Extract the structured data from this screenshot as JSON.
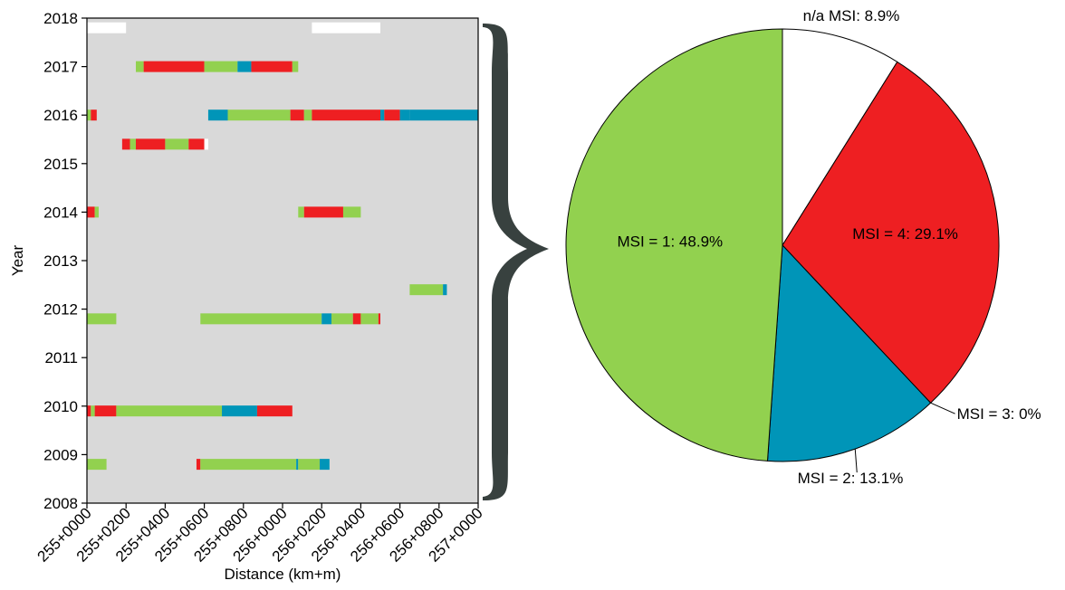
{
  "chart_data": [
    {
      "type": "heatmap",
      "title": "",
      "xlabel": "Distance (km+m)",
      "ylabel": "Year",
      "xlim": [
        "255+0000",
        "257+0000"
      ],
      "ylim": [
        2008,
        2018
      ],
      "x_tick_labels": [
        "255+0000",
        "255+0200",
        "255+0400",
        "255+0600",
        "255+0800",
        "256+0000",
        "256+0200",
        "256+0400",
        "256+0600",
        "256+0800",
        "257+0000"
      ],
      "y_tick_labels": [
        "2008",
        "2009",
        "2010",
        "2011",
        "2012",
        "2013",
        "2014",
        "2015",
        "2016",
        "2017",
        "2018"
      ],
      "background_color": "#d9d9d9",
      "category_colors": {
        "1": "#92d14f",
        "2": "#0095b8",
        "4": "#ee1f22",
        "n/a": "#ffffff"
      },
      "rows": [
        {
          "y": 2017.8,
          "segments": [
            {
              "from": "255+0000",
              "to": "255+0200",
              "msi": "n/a"
            },
            {
              "from": "256+0150",
              "to": "256+0500",
              "msi": "n/a"
            }
          ]
        },
        {
          "y": 2017.0,
          "segments": [
            {
              "from": "255+0250",
              "to": "255+0290",
              "msi": "1"
            },
            {
              "from": "255+0290",
              "to": "255+0600",
              "msi": "4"
            },
            {
              "from": "255+0600",
              "to": "255+0770",
              "msi": "1"
            },
            {
              "from": "255+0770",
              "to": "255+0840",
              "msi": "2"
            },
            {
              "from": "255+0840",
              "to": "256+0050",
              "msi": "4"
            },
            {
              "from": "256+0050",
              "to": "256+0080",
              "msi": "1"
            }
          ]
        },
        {
          "y": 2016.0,
          "segments": [
            {
              "from": "255+0000",
              "to": "255+0020",
              "msi": "1"
            },
            {
              "from": "255+0020",
              "to": "255+0050",
              "msi": "4"
            },
            {
              "from": "255+0620",
              "to": "255+0720",
              "msi": "2"
            },
            {
              "from": "255+0720",
              "to": "256+0040",
              "msi": "1"
            },
            {
              "from": "256+0040",
              "to": "256+0110",
              "msi": "4"
            },
            {
              "from": "256+0110",
              "to": "256+0150",
              "msi": "1"
            },
            {
              "from": "256+0150",
              "to": "256+0500",
              "msi": "4"
            },
            {
              "from": "256+0500",
              "to": "256+0520",
              "msi": "2"
            },
            {
              "from": "256+0520",
              "to": "256+0600",
              "msi": "4"
            },
            {
              "from": "256+0600",
              "to": "256+0650",
              "msi": "2"
            },
            {
              "from": "256+0650",
              "to": "257+0000",
              "msi": "2"
            }
          ]
        },
        {
          "y": 2015.4,
          "segments": [
            {
              "from": "255+0180",
              "to": "255+0220",
              "msi": "4"
            },
            {
              "from": "255+0220",
              "to": "255+0250",
              "msi": "1"
            },
            {
              "from": "255+0250",
              "to": "255+0400",
              "msi": "4"
            },
            {
              "from": "255+0400",
              "to": "255+0520",
              "msi": "1"
            },
            {
              "from": "255+0520",
              "to": "255+0600",
              "msi": "4"
            },
            {
              "from": "255+0600",
              "to": "255+0620",
              "msi": "n/a"
            }
          ]
        },
        {
          "y": 2014.0,
          "segments": [
            {
              "from": "255+0000",
              "to": "255+0040",
              "msi": "4"
            },
            {
              "from": "255+0040",
              "to": "255+0060",
              "msi": "1"
            },
            {
              "from": "256+0080",
              "to": "256+0110",
              "msi": "1"
            },
            {
              "from": "256+0110",
              "to": "256+0310",
              "msi": "4"
            },
            {
              "from": "256+0310",
              "to": "256+0400",
              "msi": "1"
            }
          ]
        },
        {
          "y": 2012.4,
          "segments": [
            {
              "from": "256+0650",
              "to": "256+0820",
              "msi": "1"
            },
            {
              "from": "256+0820",
              "to": "256+0840",
              "msi": "2"
            }
          ]
        },
        {
          "y": 2011.8,
          "segments": [
            {
              "from": "255+0000",
              "to": "255+0150",
              "msi": "1"
            },
            {
              "from": "255+0580",
              "to": "256+0200",
              "msi": "1"
            },
            {
              "from": "256+0200",
              "to": "256+0250",
              "msi": "2"
            },
            {
              "from": "256+0250",
              "to": "256+0360",
              "msi": "1"
            },
            {
              "from": "256+0360",
              "to": "256+0400",
              "msi": "4"
            },
            {
              "from": "256+0400",
              "to": "256+0490",
              "msi": "1"
            },
            {
              "from": "256+0490",
              "to": "256+0500",
              "msi": "4"
            }
          ]
        },
        {
          "y": 2009.9,
          "segments": [
            {
              "from": "255+0000",
              "to": "255+0020",
              "msi": "4"
            },
            {
              "from": "255+0020",
              "to": "255+0040",
              "msi": "1"
            },
            {
              "from": "255+0040",
              "to": "255+0150",
              "msi": "4"
            },
            {
              "from": "255+0150",
              "to": "255+0690",
              "msi": "1"
            },
            {
              "from": "255+0690",
              "to": "255+0870",
              "msi": "2"
            },
            {
              "from": "255+0870",
              "to": "256+0050",
              "msi": "4"
            }
          ]
        },
        {
          "y": 2008.8,
          "segments": [
            {
              "from": "255+0000",
              "to": "255+0100",
              "msi": "1"
            },
            {
              "from": "255+0560",
              "to": "255+0580",
              "msi": "4"
            },
            {
              "from": "255+0580",
              "to": "256+0070",
              "msi": "1"
            },
            {
              "from": "256+0070",
              "to": "256+0080",
              "msi": "2"
            },
            {
              "from": "256+0080",
              "to": "256+0190",
              "msi": "1"
            },
            {
              "from": "256+0190",
              "to": "256+0240",
              "msi": "2"
            }
          ]
        }
      ]
    },
    {
      "type": "pie",
      "title": "",
      "slices": [
        {
          "label": "n/a MSI: 8.9%",
          "value": 8.9,
          "color": "#ffffff"
        },
        {
          "label": "MSI = 4: 29.1%",
          "value": 29.1,
          "color": "#ee1f22"
        },
        {
          "label": "MSI = 3: 0%",
          "value": 0,
          "color": "#f5a623"
        },
        {
          "label": "MSI = 2: 13.1%",
          "value": 13.1,
          "color": "#0095b8"
        },
        {
          "label": "MSI = 1: 48.9%",
          "value": 48.9,
          "color": "#92d14f"
        }
      ]
    }
  ],
  "brace_color": "#38413f"
}
